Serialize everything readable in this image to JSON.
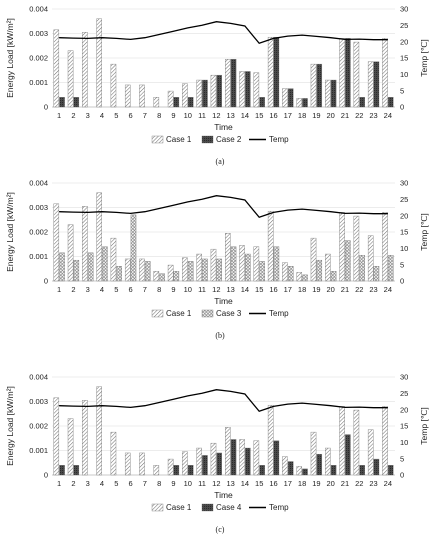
{
  "chart_data": [
    {
      "type": "bar",
      "panel_label": "(a)",
      "xlabel": "Time",
      "ylabel": "Energy Load [kW/m²]",
      "y2label": "Temp [℃]",
      "ylim": [
        0,
        0.004
      ],
      "y2lim": [
        0,
        30
      ],
      "yticks": [
        "0",
        "0.001",
        "0.002",
        "0.003",
        "0.004"
      ],
      "y2ticks": [
        "0",
        "5",
        "10",
        "15",
        "20",
        "25",
        "30"
      ],
      "categories": [
        "1",
        "2",
        "3",
        "4",
        "5",
        "6",
        "7",
        "8",
        "9",
        "10",
        "11",
        "12",
        "13",
        "14",
        "15",
        "16",
        "17",
        "18",
        "19",
        "20",
        "21",
        "22",
        "23",
        "24"
      ],
      "series": [
        {
          "name": "Case 1",
          "kind": "bar",
          "pattern": "diag",
          "values": [
            0.00315,
            0.0023,
            0.00305,
            0.0036,
            0.00175,
            0.0009,
            0.0009,
            0.0004,
            0.00065,
            0.00095,
            0.0011,
            0.0013,
            0.00195,
            0.00145,
            0.0014,
            0.00285,
            0.00075,
            0.00035,
            0.00175,
            0.0011,
            0.0028,
            0.00265,
            0.00185,
            0.0028
          ]
        },
        {
          "name": "Case 2",
          "kind": "bar",
          "pattern": "dark",
          "values": [
            0.0004,
            0.0004,
            0.0,
            0.0,
            0.0,
            0.0,
            0.0,
            0.0,
            0.0004,
            0.0004,
            0.0011,
            0.0013,
            0.00195,
            0.00145,
            0.0004,
            0.00285,
            0.00075,
            0.00035,
            0.00175,
            0.0011,
            0.0028,
            0.0004,
            0.00185,
            0.0004
          ]
        },
        {
          "name": "Temp",
          "kind": "line",
          "axis": "right",
          "values": [
            21.2,
            21.1,
            21.0,
            21.2,
            21.0,
            20.7,
            21.2,
            22.2,
            23.2,
            24.2,
            25.0,
            26.1,
            25.6,
            24.8,
            19.5,
            21.0,
            21.7,
            22.0,
            21.6,
            21.2,
            20.7,
            20.8,
            20.6,
            20.6
          ]
        }
      ]
    },
    {
      "type": "bar",
      "panel_label": "(b)",
      "xlabel": "Time",
      "ylabel": "Energy Load [kW/m²]",
      "y2label": "Temp [℃]",
      "ylim": [
        0,
        0.004
      ],
      "y2lim": [
        0,
        30
      ],
      "yticks": [
        "0",
        "0.001",
        "0.002",
        "0.003",
        "0.004"
      ],
      "y2ticks": [
        "0",
        "5",
        "10",
        "15",
        "20",
        "25",
        "30"
      ],
      "categories": [
        "1",
        "2",
        "3",
        "4",
        "5",
        "6",
        "7",
        "8",
        "9",
        "10",
        "11",
        "12",
        "13",
        "14",
        "15",
        "16",
        "17",
        "18",
        "19",
        "20",
        "21",
        "22",
        "23",
        "24"
      ],
      "series": [
        {
          "name": "Case 1",
          "kind": "bar",
          "pattern": "diag",
          "values": [
            0.00315,
            0.0023,
            0.00305,
            0.0036,
            0.00175,
            0.0009,
            0.0009,
            0.0004,
            0.00065,
            0.00095,
            0.0011,
            0.0013,
            0.00195,
            0.00145,
            0.0014,
            0.00285,
            0.00075,
            0.00035,
            0.00175,
            0.0011,
            0.0028,
            0.00265,
            0.00185,
            0.0028
          ]
        },
        {
          "name": "Case 3",
          "kind": "bar",
          "pattern": "cross",
          "values": [
            0.00115,
            0.00085,
            0.00115,
            0.0014,
            0.0006,
            0.0027,
            0.0008,
            0.0003,
            0.0004,
            0.0008,
            0.0009,
            0.0009,
            0.0014,
            0.0011,
            0.0008,
            0.0014,
            0.0006,
            0.00025,
            0.00085,
            0.0004,
            0.00165,
            0.00105,
            0.0006,
            0.00105
          ]
        },
        {
          "name": "Temp",
          "kind": "line",
          "axis": "right",
          "values": [
            21.2,
            21.1,
            21.0,
            21.2,
            21.0,
            20.7,
            21.2,
            22.2,
            23.2,
            24.2,
            25.0,
            26.1,
            25.6,
            24.8,
            19.5,
            21.0,
            21.7,
            22.0,
            21.6,
            21.2,
            20.7,
            20.8,
            20.6,
            20.6
          ]
        }
      ]
    },
    {
      "type": "bar",
      "panel_label": "(c)",
      "xlabel": "Time",
      "ylabel": "Energy Load [kW/m²]",
      "y2label": "Temp [℃]",
      "ylim": [
        0,
        0.004
      ],
      "y2lim": [
        0,
        30
      ],
      "yticks": [
        "0",
        "0.001",
        "0.002",
        "0.003",
        "0.004"
      ],
      "y2ticks": [
        "0",
        "5",
        "10",
        "15",
        "20",
        "25",
        "30"
      ],
      "categories": [
        "1",
        "2",
        "3",
        "4",
        "5",
        "6",
        "7",
        "8",
        "9",
        "10",
        "11",
        "12",
        "13",
        "14",
        "15",
        "16",
        "17",
        "18",
        "19",
        "20",
        "21",
        "22",
        "23",
        "24"
      ],
      "series": [
        {
          "name": "Case 1",
          "kind": "bar",
          "pattern": "diag",
          "values": [
            0.00315,
            0.0023,
            0.00305,
            0.0036,
            0.00175,
            0.0009,
            0.0009,
            0.0004,
            0.00065,
            0.00095,
            0.0011,
            0.0013,
            0.00195,
            0.00145,
            0.0014,
            0.00285,
            0.00075,
            0.00035,
            0.00175,
            0.0011,
            0.0028,
            0.00265,
            0.00185,
            0.0028
          ]
        },
        {
          "name": "Case 4",
          "kind": "bar",
          "pattern": "dark",
          "values": [
            0.0004,
            0.0004,
            0.0,
            0.0,
            0.0,
            0.0,
            0.0,
            0.0,
            0.0004,
            0.0004,
            0.0008,
            0.0009,
            0.00145,
            0.0011,
            0.0004,
            0.0014,
            0.00055,
            0.00025,
            0.00085,
            0.0004,
            0.00165,
            0.0004,
            0.00065,
            0.0004
          ]
        },
        {
          "name": "Temp",
          "kind": "line",
          "axis": "right",
          "values": [
            21.2,
            21.1,
            21.0,
            21.2,
            21.0,
            20.7,
            21.2,
            22.2,
            23.2,
            24.2,
            25.0,
            26.1,
            25.6,
            24.8,
            19.5,
            21.0,
            21.7,
            22.0,
            21.6,
            21.2,
            20.7,
            20.8,
            20.6,
            20.6
          ]
        }
      ]
    }
  ]
}
